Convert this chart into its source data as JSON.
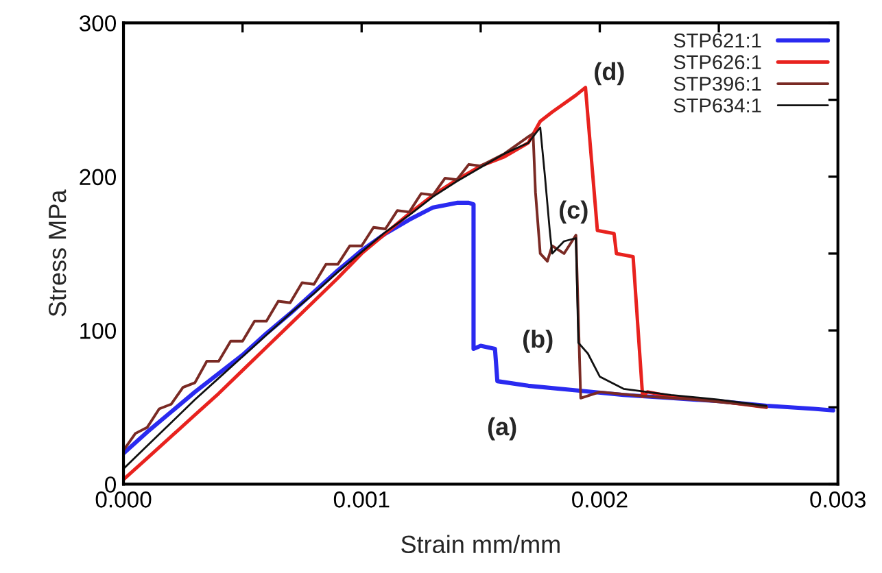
{
  "chart_data": {
    "type": "line",
    "xlabel": "Strain mm/mm",
    "ylabel": "Stress MPa",
    "xlim": [
      0,
      0.003
    ],
    "ylim": [
      0,
      300
    ],
    "xticks": [
      {
        "value": 0,
        "label": "0.000"
      },
      {
        "value": 0.0005,
        "label": null
      },
      {
        "value": 0.001,
        "label": "0.001"
      },
      {
        "value": 0.0015,
        "label": null
      },
      {
        "value": 0.002,
        "label": "0.002"
      },
      {
        "value": 0.0025,
        "label": null
      },
      {
        "value": 0.003,
        "label": "0.003"
      }
    ],
    "yticks": [
      0,
      {
        "value": 50,
        "label": null
      },
      100,
      {
        "value": 150,
        "label": null
      },
      200,
      {
        "value": 250,
        "label": null
      },
      300
    ],
    "grid": false,
    "legend": "top right",
    "marker": "none",
    "line_style": "solid",
    "series": [
      {
        "name": "STP621:1",
        "color": "#2a2af0",
        "x": [
          0,
          0.0001,
          0.0002,
          0.0003,
          0.0004,
          0.0005,
          0.0006,
          0.0007,
          0.0008,
          0.0009,
          0.001,
          0.0011,
          0.0012,
          0.0013,
          0.0014,
          0.00145,
          0.00147,
          0.00147,
          0.0015,
          0.00156,
          0.00157,
          0.0017,
          0.0019,
          0.0021,
          0.0023,
          0.0025,
          0.0027,
          0.0029,
          0.00298
        ],
        "values": [
          20,
          34,
          47,
          60,
          72,
          84,
          98,
          111,
          125,
          139,
          152,
          163,
          172,
          180,
          183,
          183,
          182,
          88,
          90,
          88,
          67,
          64,
          61,
          58,
          56,
          54,
          51,
          49,
          48
        ]
      },
      {
        "name": "STP626:1",
        "color": "#e8221e",
        "x": [
          0,
          0.0001,
          0.0002,
          0.0003,
          0.0004,
          0.0005,
          0.0006,
          0.0007,
          0.0008,
          0.0009,
          0.001,
          0.0011,
          0.0012,
          0.0013,
          0.0014,
          0.0015,
          0.0016,
          0.0017,
          0.00175,
          0.0018,
          0.0019,
          0.00194,
          0.00199,
          0.00206,
          0.00207,
          0.00214,
          0.00218,
          0.0022,
          0.0023,
          0.0025,
          0.0027
        ],
        "values": [
          3,
          17,
          31,
          45,
          59,
          74,
          89,
          104,
          119,
          134,
          150,
          163,
          176,
          188,
          198,
          207,
          213,
          222,
          236,
          242,
          253,
          258,
          165,
          163,
          150,
          148,
          57,
          60,
          57,
          54,
          50
        ]
      },
      {
        "name": "STP396:1",
        "color": "#7a2a24",
        "x": [
          0,
          5e-05,
          0.0001,
          0.00015,
          0.0002,
          0.00025,
          0.0003,
          0.00035,
          0.0004,
          0.00045,
          0.0005,
          0.00055,
          0.0006,
          0.00065,
          0.0007,
          0.00075,
          0.0008,
          0.00085,
          0.0009,
          0.00095,
          0.001,
          0.00105,
          0.0011,
          0.00115,
          0.0012,
          0.00125,
          0.0013,
          0.00135,
          0.0014,
          0.00145,
          0.0015,
          0.0016,
          0.0017,
          0.00172,
          0.00173,
          0.00175,
          0.00178,
          0.0018,
          0.00185,
          0.0019,
          0.00192,
          0.002,
          0.0022,
          0.0024,
          0.0026,
          0.0027
        ],
        "values": [
          22,
          33,
          37,
          49,
          52,
          63,
          66,
          80,
          80,
          93,
          93,
          106,
          106,
          119,
          118,
          131,
          130,
          143,
          143,
          155,
          155,
          167,
          166,
          178,
          177,
          189,
          188,
          199,
          198,
          208,
          207,
          215,
          226,
          228,
          190,
          150,
          145,
          155,
          150,
          162,
          56,
          60,
          57,
          55,
          52,
          50
        ]
      },
      {
        "name": "STP634:1",
        "color": "#111111",
        "x": [
          0,
          0.0001,
          0.0002,
          0.0003,
          0.0004,
          0.0005,
          0.0006,
          0.0007,
          0.0008,
          0.0009,
          0.001,
          0.0011,
          0.0012,
          0.0013,
          0.0014,
          0.0015,
          0.0016,
          0.0017,
          0.00175,
          0.00177,
          0.00179,
          0.0018,
          0.00185,
          0.0019,
          0.00191,
          0.00195,
          0.002,
          0.0021,
          0.0023,
          0.0025,
          0.0027
        ],
        "values": [
          10,
          25,
          40,
          55,
          69,
          83,
          97,
          111,
          124,
          138,
          151,
          164,
          175,
          187,
          197,
          206,
          215,
          222,
          232,
          200,
          165,
          150,
          158,
          160,
          92,
          85,
          70,
          62,
          58,
          55,
          51
        ]
      }
    ],
    "annotations": [
      "(a)",
      "(b)",
      "(c)",
      "(d)"
    ]
  }
}
